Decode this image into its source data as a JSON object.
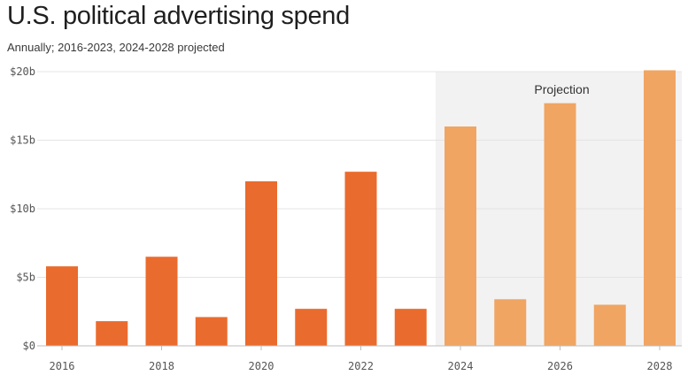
{
  "title": "U.S. political advertising spend",
  "subtitle": "Annually; 2016-2023, 2024-2028 projected",
  "colors": {
    "actual": "#ea6b2e",
    "projected": "#f0a562",
    "projection_band": "#f2f2f2",
    "grid": "#e4e4e4"
  },
  "chart_data": {
    "type": "bar",
    "categories": [
      "2016",
      "2017",
      "2018",
      "2019",
      "2020",
      "2021",
      "2022",
      "2023",
      "2024",
      "2025",
      "2026",
      "2027",
      "2028"
    ],
    "values": [
      5.8,
      1.8,
      6.5,
      2.1,
      12.0,
      2.7,
      12.7,
      2.7,
      16.0,
      3.4,
      17.7,
      3.0,
      20.1
    ],
    "projected": [
      false,
      false,
      false,
      false,
      false,
      false,
      false,
      false,
      true,
      true,
      true,
      true,
      true
    ],
    "x_tick_labels": [
      "2016",
      "2018",
      "2020",
      "2022",
      "2024",
      "2026",
      "2028"
    ],
    "y_ticks": [
      0,
      5,
      10,
      15,
      20
    ],
    "y_tick_labels": [
      "$0",
      "$5b",
      "$10b",
      "$15b",
      "$20b"
    ],
    "ylim": [
      0,
      20
    ],
    "annotation": "Projection",
    "xlabel": "",
    "ylabel": "",
    "grid": true
  }
}
